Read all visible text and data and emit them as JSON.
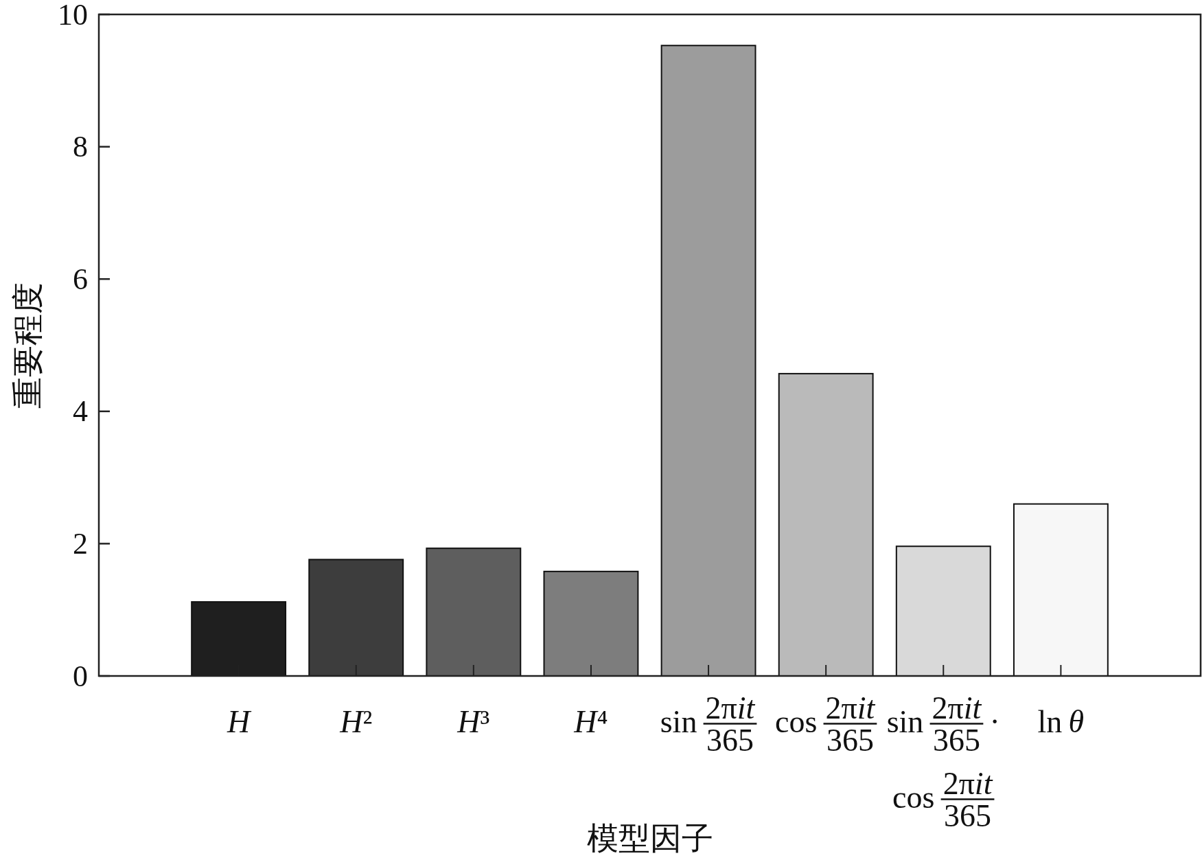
{
  "chart_data": {
    "type": "bar",
    "xlabel": "模型因子",
    "ylabel": "重要程度",
    "categories": [
      "H",
      "H²",
      "H³",
      "H⁴",
      "sin $^{2πit}$$_{365}$",
      "cos $^{2πit}$$_{365}$",
      "sin $^{2πit}$$_{365}$ ·\ncos $^{2πit}$$_{365}$",
      "ln θ"
    ],
    "values": [
      1.12,
      1.76,
      1.93,
      1.58,
      9.53,
      4.57,
      1.96,
      2.6
    ],
    "colors": [
      "#1f1f1f",
      "#3d3d3d",
      "#5e5e5e",
      "#7d7d7d",
      "#9c9c9c",
      "#bababa",
      "#d9d9d9",
      "#f7f7f7"
    ],
    "ylim": [
      0,
      10
    ],
    "yticks": [
      0,
      2,
      4,
      6,
      8,
      10
    ]
  }
}
